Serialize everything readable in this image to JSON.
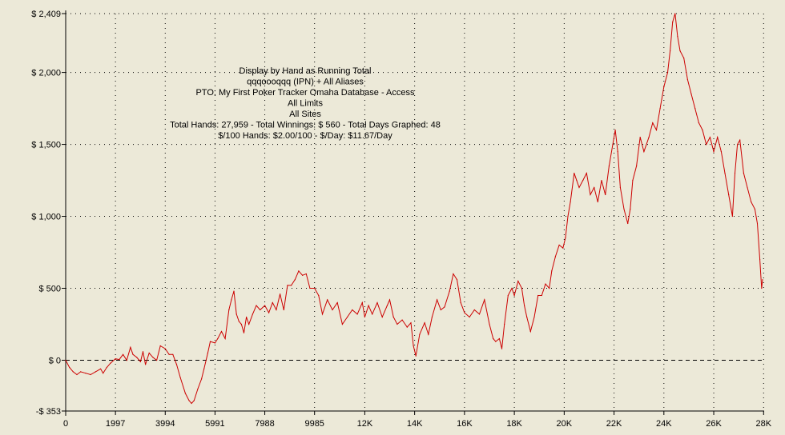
{
  "chart_data": {
    "type": "line",
    "title_lines": [
      "Display by Hand as Running Total",
      "qqqoooqqq (IPN) + All Aliases",
      "PTO: My First Poker Tracker Omaha Database - Access",
      "All Limits",
      "All Sites",
      "Total Hands: 27,959 - Total Winnings: $ 560 - Total Days Graphed: 48",
      "$/100 Hands: $2.00/100 - $/Day: $11.67/Day"
    ],
    "xlabel": "",
    "ylabel": "",
    "xlim": [
      0,
      27959
    ],
    "ylim": [
      -353,
      2409
    ],
    "grid": true,
    "zero_line": true,
    "line_color": "#CC0000",
    "y_ticks": [
      {
        "value": 2409,
        "label": "$ 2,409"
      },
      {
        "value": 2000,
        "label": "$ 2,000"
      },
      {
        "value": 1500,
        "label": "$ 1,500"
      },
      {
        "value": 1000,
        "label": "$ 1,000"
      },
      {
        "value": 500,
        "label": "$ 500"
      },
      {
        "value": 0,
        "label": "$ 0"
      },
      {
        "value": -353,
        "label": "-$ 353"
      }
    ],
    "x_ticks": [
      {
        "value": 0,
        "label": "0"
      },
      {
        "value": 1997,
        "label": "1997"
      },
      {
        "value": 3994,
        "label": "3994"
      },
      {
        "value": 5991,
        "label": "5991"
      },
      {
        "value": 7988,
        "label": "7988"
      },
      {
        "value": 9985,
        "label": "9985"
      },
      {
        "value": 12000,
        "label": "12K"
      },
      {
        "value": 14000,
        "label": "14K"
      },
      {
        "value": 16000,
        "label": "16K"
      },
      {
        "value": 18000,
        "label": "18K"
      },
      {
        "value": 20000,
        "label": "20K"
      },
      {
        "value": 22000,
        "label": "22K"
      },
      {
        "value": 24000,
        "label": "24K"
      },
      {
        "value": 26000,
        "label": "26K"
      },
      {
        "value": 28000,
        "label": "28K"
      }
    ],
    "series": [
      {
        "points": [
          [
            0,
            0
          ],
          [
            150,
            -50
          ],
          [
            300,
            -80
          ],
          [
            450,
            -100
          ],
          [
            600,
            -80
          ],
          [
            800,
            -90
          ],
          [
            1000,
            -100
          ],
          [
            1200,
            -80
          ],
          [
            1400,
            -60
          ],
          [
            1500,
            -90
          ],
          [
            1650,
            -50
          ],
          [
            1800,
            -20
          ],
          [
            1997,
            10
          ],
          [
            2150,
            5
          ],
          [
            2300,
            40
          ],
          [
            2450,
            0
          ],
          [
            2600,
            90
          ],
          [
            2700,
            40
          ],
          [
            2850,
            20
          ],
          [
            3000,
            -10
          ],
          [
            3100,
            60
          ],
          [
            3200,
            -30
          ],
          [
            3350,
            50
          ],
          [
            3500,
            20
          ],
          [
            3650,
            0
          ],
          [
            3800,
            100
          ],
          [
            3994,
            80
          ],
          [
            4150,
            40
          ],
          [
            4300,
            40
          ],
          [
            4450,
            -30
          ],
          [
            4600,
            -120
          ],
          [
            4800,
            -230
          ],
          [
            4950,
            -280
          ],
          [
            5050,
            -300
          ],
          [
            5150,
            -280
          ],
          [
            5300,
            -200
          ],
          [
            5450,
            -130
          ],
          [
            5550,
            -60
          ],
          [
            5700,
            50
          ],
          [
            5800,
            130
          ],
          [
            5991,
            120
          ],
          [
            6100,
            150
          ],
          [
            6250,
            200
          ],
          [
            6400,
            150
          ],
          [
            6550,
            350
          ],
          [
            6650,
            420
          ],
          [
            6750,
            480
          ],
          [
            6850,
            320
          ],
          [
            6950,
            270
          ],
          [
            7050,
            250
          ],
          [
            7150,
            190
          ],
          [
            7250,
            300
          ],
          [
            7350,
            250
          ],
          [
            7500,
            320
          ],
          [
            7650,
            380
          ],
          [
            7800,
            350
          ],
          [
            7988,
            380
          ],
          [
            8150,
            330
          ],
          [
            8300,
            400
          ],
          [
            8450,
            350
          ],
          [
            8600,
            460
          ],
          [
            8750,
            350
          ],
          [
            8900,
            520
          ],
          [
            9050,
            520
          ],
          [
            9200,
            560
          ],
          [
            9350,
            620
          ],
          [
            9500,
            590
          ],
          [
            9650,
            600
          ],
          [
            9800,
            500
          ],
          [
            9985,
            500
          ],
          [
            10150,
            450
          ],
          [
            10300,
            320
          ],
          [
            10500,
            420
          ],
          [
            10700,
            350
          ],
          [
            10900,
            400
          ],
          [
            11100,
            250
          ],
          [
            11300,
            300
          ],
          [
            11500,
            350
          ],
          [
            11700,
            320
          ],
          [
            11900,
            400
          ],
          [
            12000,
            300
          ],
          [
            12150,
            380
          ],
          [
            12300,
            320
          ],
          [
            12500,
            400
          ],
          [
            12700,
            300
          ],
          [
            12900,
            380
          ],
          [
            13000,
            420
          ],
          [
            13150,
            300
          ],
          [
            13300,
            250
          ],
          [
            13500,
            280
          ],
          [
            13700,
            230
          ],
          [
            13850,
            260
          ],
          [
            13950,
            100
          ],
          [
            14050,
            30
          ],
          [
            14200,
            180
          ],
          [
            14400,
            260
          ],
          [
            14550,
            180
          ],
          [
            14700,
            300
          ],
          [
            14900,
            420
          ],
          [
            15050,
            350
          ],
          [
            15200,
            370
          ],
          [
            15400,
            480
          ],
          [
            15550,
            600
          ],
          [
            15700,
            560
          ],
          [
            15850,
            400
          ],
          [
            16000,
            330
          ],
          [
            16200,
            300
          ],
          [
            16400,
            350
          ],
          [
            16600,
            320
          ],
          [
            16800,
            420
          ],
          [
            17000,
            250
          ],
          [
            17150,
            150
          ],
          [
            17250,
            130
          ],
          [
            17400,
            150
          ],
          [
            17500,
            80
          ],
          [
            17600,
            250
          ],
          [
            17750,
            450
          ],
          [
            17900,
            500
          ],
          [
            18000,
            450
          ],
          [
            18150,
            550
          ],
          [
            18300,
            500
          ],
          [
            18400,
            380
          ],
          [
            18500,
            300
          ],
          [
            18650,
            200
          ],
          [
            18800,
            300
          ],
          [
            18950,
            450
          ],
          [
            19100,
            450
          ],
          [
            19250,
            530
          ],
          [
            19400,
            500
          ],
          [
            19500,
            620
          ],
          [
            19650,
            720
          ],
          [
            19800,
            800
          ],
          [
            19950,
            780
          ],
          [
            20050,
            850
          ],
          [
            20150,
            1000
          ],
          [
            20250,
            1100
          ],
          [
            20400,
            1300
          ],
          [
            20500,
            1250
          ],
          [
            20600,
            1200
          ],
          [
            20750,
            1250
          ],
          [
            20900,
            1300
          ],
          [
            21050,
            1150
          ],
          [
            21200,
            1200
          ],
          [
            21350,
            1100
          ],
          [
            21500,
            1250
          ],
          [
            21650,
            1150
          ],
          [
            21800,
            1350
          ],
          [
            21950,
            1500
          ],
          [
            22050,
            1600
          ],
          [
            22150,
            1450
          ],
          [
            22250,
            1200
          ],
          [
            22400,
            1050
          ],
          [
            22550,
            950
          ],
          [
            22650,
            1050
          ],
          [
            22750,
            1250
          ],
          [
            22900,
            1350
          ],
          [
            23050,
            1550
          ],
          [
            23200,
            1450
          ],
          [
            23400,
            1550
          ],
          [
            23550,
            1650
          ],
          [
            23700,
            1600
          ],
          [
            23850,
            1750
          ],
          [
            24000,
            1900
          ],
          [
            24150,
            2000
          ],
          [
            24250,
            2150
          ],
          [
            24350,
            2350
          ],
          [
            24450,
            2409
          ],
          [
            24550,
            2250
          ],
          [
            24650,
            2150
          ],
          [
            24800,
            2100
          ],
          [
            24950,
            1950
          ],
          [
            25100,
            1850
          ],
          [
            25250,
            1750
          ],
          [
            25400,
            1650
          ],
          [
            25550,
            1600
          ],
          [
            25700,
            1500
          ],
          [
            25850,
            1550
          ],
          [
            26000,
            1450
          ],
          [
            26150,
            1550
          ],
          [
            26300,
            1450
          ],
          [
            26450,
            1300
          ],
          [
            26600,
            1150
          ],
          [
            26750,
            1000
          ],
          [
            26850,
            1300
          ],
          [
            26950,
            1500
          ],
          [
            27050,
            1530
          ],
          [
            27200,
            1300
          ],
          [
            27350,
            1200
          ],
          [
            27500,
            1100
          ],
          [
            27650,
            1050
          ],
          [
            27750,
            950
          ],
          [
            27850,
            700
          ],
          [
            27920,
            500
          ],
          [
            27959,
            560
          ]
        ]
      }
    ]
  }
}
